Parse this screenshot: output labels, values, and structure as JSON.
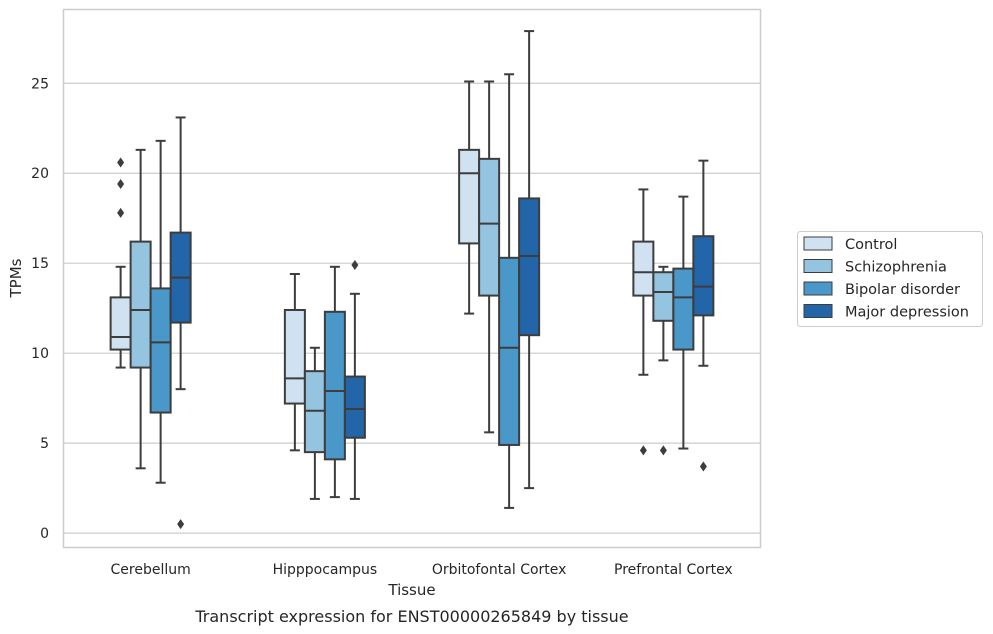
{
  "chart_data": {
    "type": "box",
    "caption": "Transcript expression for ENST00000265849 by tissue",
    "xlabel": "Tissue",
    "ylabel": "TPMs",
    "ylim": [
      -0.8,
      29.1
    ],
    "yticks": [
      0,
      5,
      10,
      15,
      20,
      25
    ],
    "grid": "horizontal",
    "legend_position": "right",
    "categories": [
      "Cerebellum",
      "Hipppocampus",
      "Orbitofontal Cortex",
      "Prefrontal Cortex"
    ],
    "series": [
      {
        "name": "Control",
        "color": "#d0e1f2",
        "boxes": [
          {
            "whisker_low": 9.2,
            "q1": 10.2,
            "median": 10.9,
            "q3": 13.1,
            "whisker_high": 14.8,
            "outliers": [
              17.8,
              19.4,
              20.6
            ]
          },
          {
            "whisker_low": 4.6,
            "q1": 7.2,
            "median": 8.6,
            "q3": 12.4,
            "whisker_high": 14.4,
            "outliers": []
          },
          {
            "whisker_low": 12.2,
            "q1": 16.1,
            "median": 20.0,
            "q3": 21.3,
            "whisker_high": 25.1,
            "outliers": []
          },
          {
            "whisker_low": 8.8,
            "q1": 13.2,
            "median": 14.5,
            "q3": 16.2,
            "whisker_high": 19.1,
            "outliers": [
              4.6
            ]
          }
        ]
      },
      {
        "name": "Schizophrenia",
        "color": "#94c4df",
        "boxes": [
          {
            "whisker_low": 3.6,
            "q1": 9.2,
            "median": 12.4,
            "q3": 16.2,
            "whisker_high": 21.3,
            "outliers": []
          },
          {
            "whisker_low": 1.9,
            "q1": 4.5,
            "median": 6.8,
            "q3": 9.0,
            "whisker_high": 10.3,
            "outliers": []
          },
          {
            "whisker_low": 5.6,
            "q1": 13.2,
            "median": 17.2,
            "q3": 20.8,
            "whisker_high": 25.1,
            "outliers": []
          },
          {
            "whisker_low": 9.6,
            "q1": 11.8,
            "median": 13.4,
            "q3": 14.5,
            "whisker_high": 14.8,
            "outliers": [
              4.6
            ]
          }
        ]
      },
      {
        "name": "Bipolar disorder",
        "color": "#4a98c9",
        "boxes": [
          {
            "whisker_low": 2.8,
            "q1": 6.7,
            "median": 10.6,
            "q3": 13.6,
            "whisker_high": 21.8,
            "outliers": []
          },
          {
            "whisker_low": 2.0,
            "q1": 4.1,
            "median": 7.9,
            "q3": 12.3,
            "whisker_high": 14.8,
            "outliers": []
          },
          {
            "whisker_low": 1.4,
            "q1": 4.9,
            "median": 10.3,
            "q3": 15.3,
            "whisker_high": 25.5,
            "outliers": []
          },
          {
            "whisker_low": 4.7,
            "q1": 10.2,
            "median": 13.1,
            "q3": 14.7,
            "whisker_high": 18.7,
            "outliers": []
          }
        ]
      },
      {
        "name": "Major depression",
        "color": "#2265a8",
        "boxes": [
          {
            "whisker_low": 8.0,
            "q1": 11.7,
            "median": 14.2,
            "q3": 16.7,
            "whisker_high": 23.1,
            "outliers": [
              0.5
            ]
          },
          {
            "whisker_low": 1.9,
            "q1": 5.3,
            "median": 6.9,
            "q3": 8.7,
            "whisker_high": 13.3,
            "outliers": [
              14.9
            ]
          },
          {
            "whisker_low": 2.5,
            "q1": 11.0,
            "median": 15.4,
            "q3": 18.6,
            "whisker_high": 27.9,
            "outliers": []
          },
          {
            "whisker_low": 9.3,
            "q1": 12.1,
            "median": 13.7,
            "q3": 16.5,
            "whisker_high": 20.7,
            "outliers": [
              3.7
            ]
          }
        ]
      }
    ]
  }
}
